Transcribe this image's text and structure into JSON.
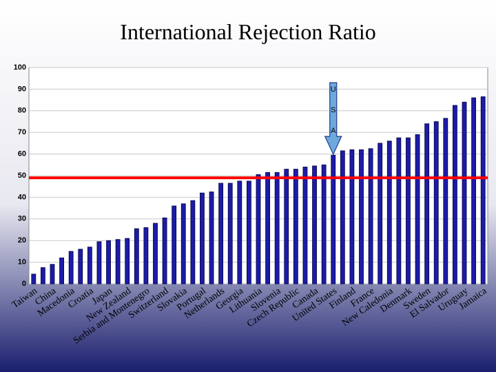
{
  "chart_data": {
    "type": "bar",
    "title": "International Rejection Ratio",
    "categories": [
      "Taiwan",
      null,
      "China",
      null,
      "Macedonia",
      null,
      "Croatia",
      null,
      "Japan",
      null,
      "New Zealand",
      null,
      "Serbia and Montenegro",
      null,
      "Switzerland",
      null,
      "Slovakia",
      null,
      "Portugal",
      null,
      "Netherlands",
      null,
      "Georgia",
      null,
      "Lithuania",
      null,
      "Slovenia",
      null,
      "Czech Republic",
      null,
      "Canada",
      null,
      "United States",
      null,
      "Finland",
      null,
      "France",
      null,
      "New Caledonia",
      null,
      "Denmark",
      null,
      "Sweden",
      null,
      "El Salvador",
      null,
      "Uruguay",
      null,
      "Jamaica"
    ],
    "values": [
      4.5,
      7.5,
      9,
      12,
      15,
      16,
      17,
      19.5,
      20,
      20.5,
      21,
      25.5,
      26,
      28,
      30.5,
      36,
      37,
      38.5,
      42,
      42.5,
      46.5,
      46.5,
      47.5,
      47.5,
      50.5,
      51.5,
      51.5,
      53,
      53,
      54,
      54.5,
      55,
      59.5,
      61.5,
      62,
      62,
      62.5,
      65,
      66,
      67.5,
      67.5,
      69,
      74,
      75,
      76.5,
      82.5,
      84,
      86,
      86.5
    ],
    "color": "#1c1ca8",
    "ylim": [
      0,
      100
    ],
    "yticks": [
      0,
      10,
      20,
      30,
      40,
      50,
      60,
      70,
      80,
      90,
      100
    ],
    "grid": true,
    "reference_line": {
      "value": 49,
      "color": "#ff0000"
    },
    "annotation_letters": [
      "U",
      "S",
      "A"
    ]
  }
}
